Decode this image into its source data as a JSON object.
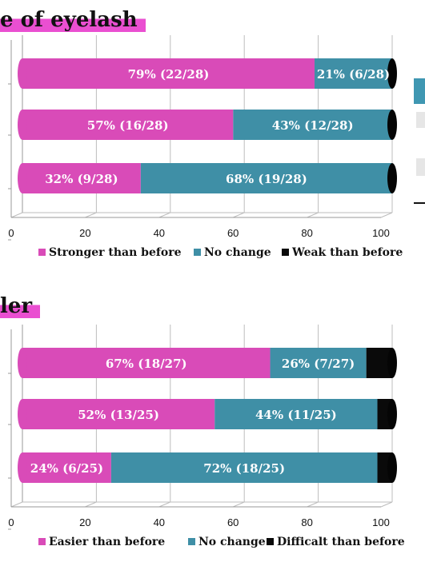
{
  "titles": {
    "top": "e of eyelash",
    "bottom": "ler"
  },
  "colors": {
    "magenta": "#d94bb8",
    "teal": "#3f8fa6",
    "black": "#0a0a0a"
  },
  "chart_data": [
    {
      "type": "bar",
      "orientation": "horizontal",
      "stacked": true,
      "title": "e of eyelash",
      "xlim": [
        0,
        100
      ],
      "xticks": [
        "0",
        "20",
        "40",
        "60",
        "80",
        "100"
      ],
      "legend_position": "bottom",
      "rows": [
        {
          "values": [
            79,
            21,
            0
          ],
          "labels": [
            "79% (22/28)",
            "21% (6/28)",
            ""
          ]
        },
        {
          "values": [
            57,
            43,
            0
          ],
          "labels": [
            "57% (16/28)",
            "43% (12/28)",
            ""
          ]
        },
        {
          "values": [
            32,
            68,
            0
          ],
          "labels": [
            "32% (9/28)",
            "68% (19/28)",
            ""
          ]
        }
      ],
      "series": [
        {
          "name": "Stronger than before",
          "color": "#d94bb8"
        },
        {
          "name": "No change",
          "color": "#3f8fa6"
        },
        {
          "name": "Weak than before",
          "color": "#0a0a0a"
        }
      ]
    },
    {
      "type": "bar",
      "orientation": "horizontal",
      "stacked": true,
      "title": "ler",
      "xlim": [
        0,
        100
      ],
      "xticks": [
        "0",
        "20",
        "40",
        "60",
        "80",
        "100"
      ],
      "legend_position": "bottom",
      "rows": [
        {
          "values": [
            67,
            26,
            7
          ],
          "labels": [
            "67% (18/27)",
            "26% (7/27)",
            ""
          ]
        },
        {
          "values": [
            52,
            44,
            4
          ],
          "labels": [
            "52% (13/25)",
            "44% (11/25)",
            ""
          ]
        },
        {
          "values": [
            24,
            72,
            4
          ],
          "labels": [
            "24% (6/25)",
            "72% (18/25)",
            ""
          ]
        }
      ],
      "series": [
        {
          "name": "Easier than before",
          "color": "#d94bb8"
        },
        {
          "name": "No change",
          "color": "#3f8fa6"
        },
        {
          "name": "Difficalt than before",
          "color": "#0a0a0a"
        }
      ]
    }
  ]
}
